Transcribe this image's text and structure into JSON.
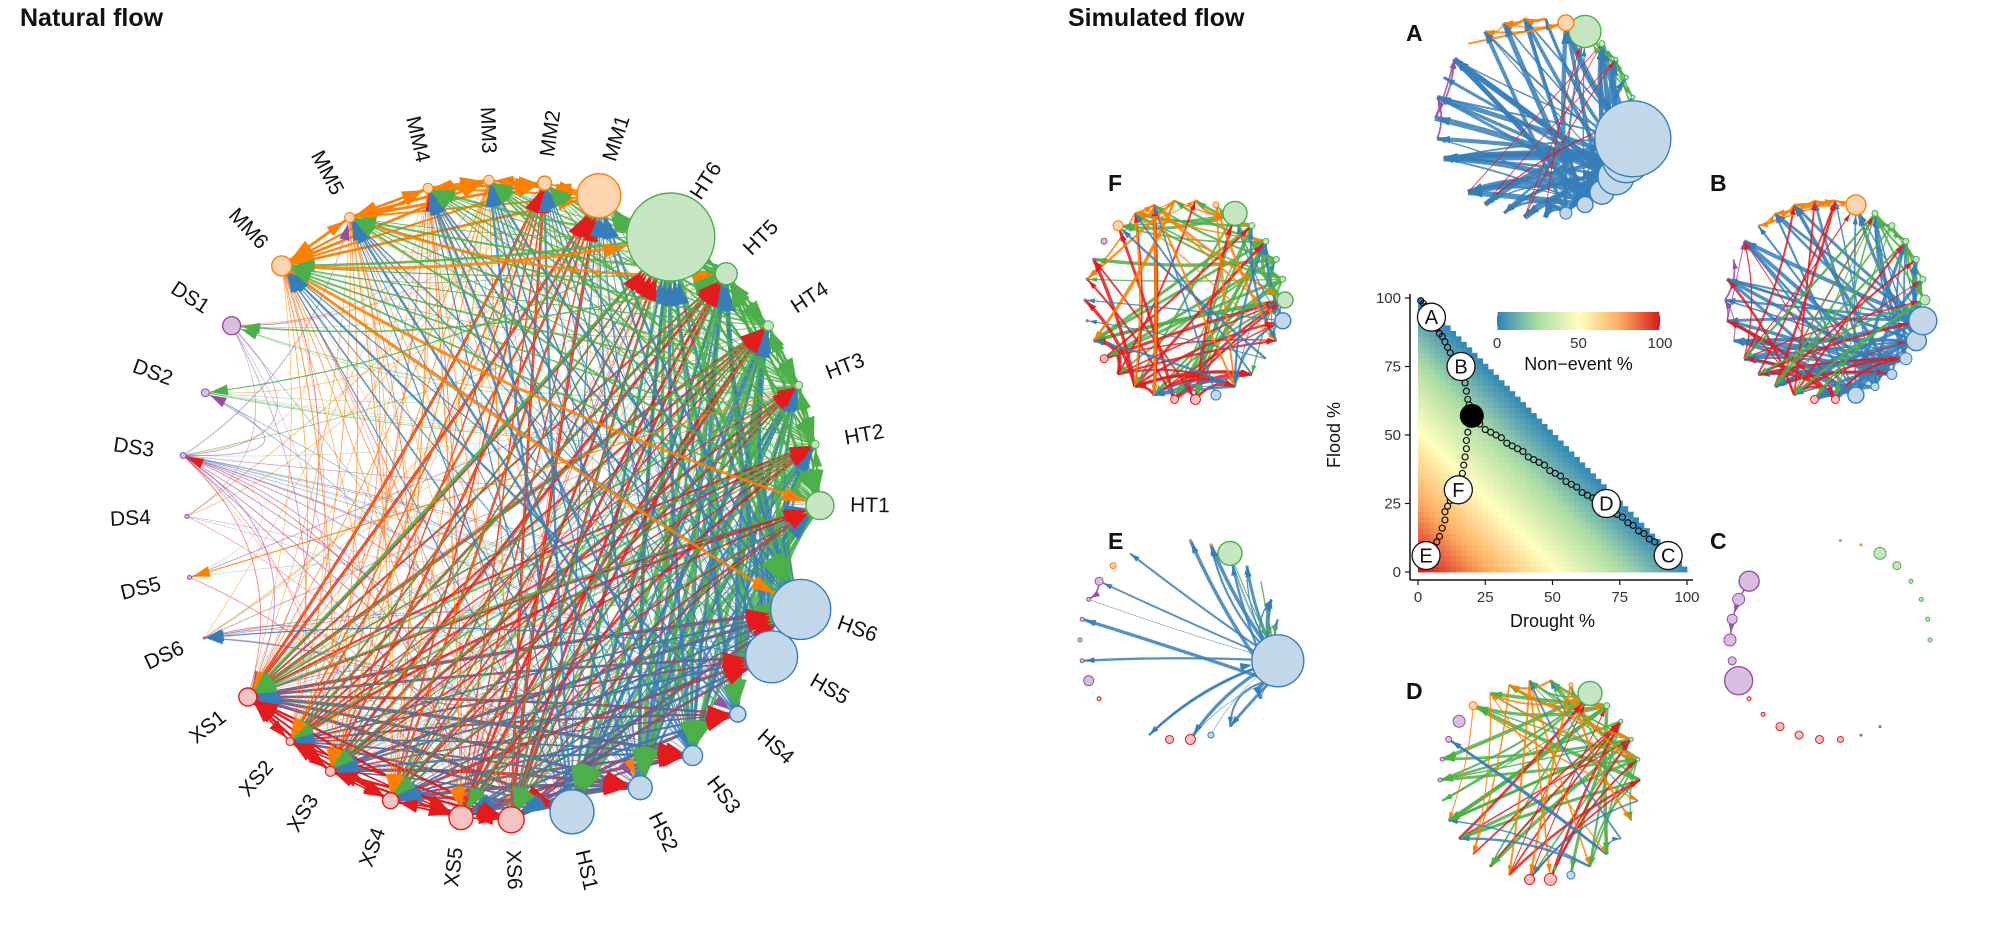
{
  "natural": {
    "title": "Natural flow",
    "nodes": [
      "HT1",
      "HT2",
      "HT3",
      "HT4",
      "HT5",
      "HT6",
      "MM1",
      "MM2",
      "MM3",
      "MM4",
      "MM5",
      "MM6",
      "DS1",
      "DS2",
      "DS3",
      "DS4",
      "DS5",
      "DS6",
      "XS1",
      "XS2",
      "XS3",
      "XS4",
      "XS5",
      "XS6",
      "HS1",
      "HS2",
      "HS3",
      "HS4",
      "HS5",
      "HS6"
    ]
  },
  "simulated": {
    "title": "Simulated flow",
    "panels": [
      "A",
      "B",
      "C",
      "D",
      "E",
      "F"
    ]
  },
  "colors": {
    "HT": "#4DAF4A",
    "MM": "#FF7F00",
    "DS": "#984EA3",
    "XS": "#E41A1C",
    "HS": "#377EB8",
    "HT_fill": "#c6e6c3",
    "MM_fill": "#fdd5b0",
    "DS_fill": "#d8bfe0",
    "XS_fill": "#f6c2c2",
    "HS_fill": "#c3d7ea"
  },
  "chart_data": {
    "type": "scatter",
    "xlabel": "Drought %",
    "ylabel": "Flood %",
    "xlim": [
      0,
      100
    ],
    "ylim": [
      0,
      100
    ],
    "xticks": [
      "0",
      "25",
      "50",
      "75",
      "100"
    ],
    "yticks": [
      "0",
      "25",
      "50",
      "75",
      "100"
    ],
    "legend": {
      "title": "Non−event %",
      "ticks": [
        "0",
        "50",
        "100"
      ],
      "placement": "top-right"
    },
    "fill_scale": "Non-event %",
    "labeled_points": [
      {
        "label": "A",
        "x": 5,
        "y": 93
      },
      {
        "label": "B",
        "x": 16,
        "y": 75
      },
      {
        "label": "C",
        "x": 93,
        "y": 6
      },
      {
        "label": "D",
        "x": 70,
        "y": 25
      },
      {
        "label": "E",
        "x": 3,
        "y": 6
      },
      {
        "label": "F",
        "x": 15,
        "y": 30
      }
    ],
    "center_point": {
      "x": 20,
      "y": 57
    },
    "path_AB": [
      [
        1,
        99
      ],
      [
        2,
        98
      ],
      [
        3,
        97
      ],
      [
        4,
        95
      ],
      [
        5,
        93
      ],
      [
        6,
        91
      ],
      [
        7,
        89
      ],
      [
        8,
        87
      ],
      [
        9,
        86
      ],
      [
        10,
        84
      ],
      [
        11,
        82
      ],
      [
        12,
        80
      ],
      [
        13,
        78
      ],
      [
        14,
        77
      ],
      [
        15,
        76
      ],
      [
        16,
        75
      ],
      [
        17,
        72
      ],
      [
        17.5,
        69
      ],
      [
        18,
        66
      ],
      [
        18.5,
        63
      ],
      [
        19,
        61
      ],
      [
        19.5,
        59
      ],
      [
        20,
        57
      ]
    ],
    "path_D": [
      [
        21,
        56
      ],
      [
        23,
        54
      ],
      [
        25,
        52
      ],
      [
        27,
        51
      ],
      [
        29,
        50
      ],
      [
        31,
        49
      ],
      [
        33,
        47
      ],
      [
        35,
        46
      ],
      [
        37,
        45
      ],
      [
        39,
        44
      ],
      [
        41,
        42
      ],
      [
        43,
        41
      ],
      [
        45,
        40
      ],
      [
        47,
        39
      ],
      [
        49,
        37
      ],
      [
        51,
        36
      ],
      [
        53,
        35
      ],
      [
        55,
        33
      ],
      [
        57,
        32
      ],
      [
        59,
        31
      ],
      [
        61,
        29
      ],
      [
        63,
        28
      ],
      [
        65,
        27
      ],
      [
        67,
        26
      ],
      [
        70,
        25
      ],
      [
        72,
        23
      ],
      [
        74,
        21
      ],
      [
        76,
        20
      ],
      [
        78,
        18
      ],
      [
        80,
        17
      ],
      [
        82,
        15
      ],
      [
        84,
        14
      ],
      [
        86,
        12
      ],
      [
        88,
        11
      ],
      [
        90,
        9
      ],
      [
        92,
        7
      ],
      [
        93,
        6
      ]
    ],
    "path_F": [
      [
        20,
        56
      ],
      [
        19,
        54
      ],
      [
        18.5,
        51
      ],
      [
        18,
        48
      ],
      [
        18,
        45
      ],
      [
        17.5,
        42
      ],
      [
        17,
        39
      ],
      [
        16.5,
        36
      ],
      [
        16,
        33
      ],
      [
        15,
        30
      ],
      [
        14,
        28
      ],
      [
        12,
        26
      ],
      [
        11,
        24
      ],
      [
        10,
        22
      ],
      [
        10,
        19
      ],
      [
        9,
        16
      ],
      [
        8,
        13
      ],
      [
        7,
        11
      ],
      [
        6,
        9
      ],
      [
        5,
        8
      ],
      [
        4,
        7
      ],
      [
        3,
        6
      ],
      [
        2,
        5
      ],
      [
        1,
        4
      ]
    ]
  }
}
